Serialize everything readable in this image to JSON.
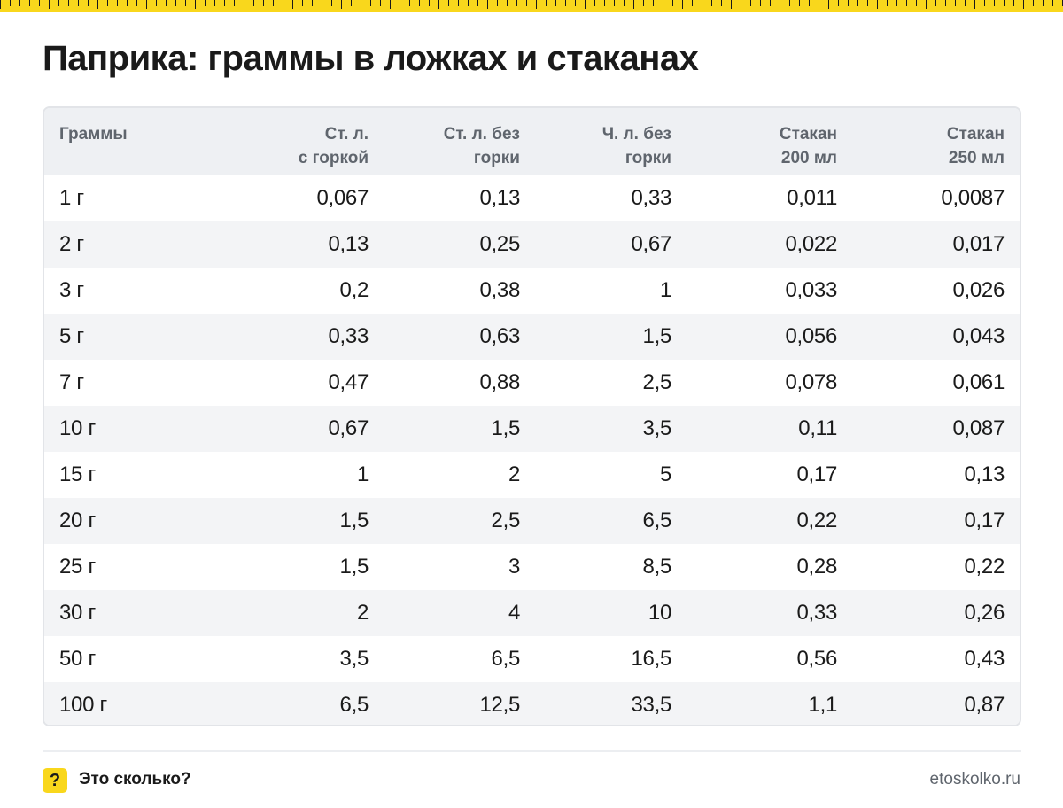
{
  "title": "Паприка: граммы в ложках и стаканах",
  "table": {
    "headers": [
      [
        "Граммы"
      ],
      [
        "Ст. л.",
        "с горкой"
      ],
      [
        "Ст. л. без",
        "горки"
      ],
      [
        "Ч. л. без",
        "горки"
      ],
      [
        "Стакан",
        "200 мл"
      ],
      [
        "Стакан",
        "250 мл"
      ]
    ],
    "rows": [
      [
        "1 г",
        "0,067",
        "0,13",
        "0,33",
        "0,011",
        "0,0087"
      ],
      [
        "2 г",
        "0,13",
        "0,25",
        "0,67",
        "0,022",
        "0,017"
      ],
      [
        "3 г",
        "0,2",
        "0,38",
        "1",
        "0,033",
        "0,026"
      ],
      [
        "5 г",
        "0,33",
        "0,63",
        "1,5",
        "0,056",
        "0,043"
      ],
      [
        "7 г",
        "0,47",
        "0,88",
        "2,5",
        "0,078",
        "0,061"
      ],
      [
        "10 г",
        "0,67",
        "1,5",
        "3,5",
        "0,11",
        "0,087"
      ],
      [
        "15 г",
        "1",
        "2",
        "5",
        "0,17",
        "0,13"
      ],
      [
        "20 г",
        "1,5",
        "2,5",
        "6,5",
        "0,22",
        "0,17"
      ],
      [
        "25 г",
        "1,5",
        "3",
        "8,5",
        "0,28",
        "0,22"
      ],
      [
        "30 г",
        "2",
        "4",
        "10",
        "0,33",
        "0,26"
      ],
      [
        "50 г",
        "3,5",
        "6,5",
        "16,5",
        "0,56",
        "0,43"
      ],
      [
        "100 г",
        "6,5",
        "12,5",
        "33,5",
        "1,1",
        "0,87"
      ]
    ]
  },
  "footer": {
    "badge": "?",
    "brand": "Это сколько?",
    "site": "etoskolko.ru"
  },
  "colors": {
    "accent": "#f9d71c",
    "header_bg": "#eef0f3",
    "stripe_bg": "#f3f4f6",
    "muted_text": "#5f656d"
  }
}
